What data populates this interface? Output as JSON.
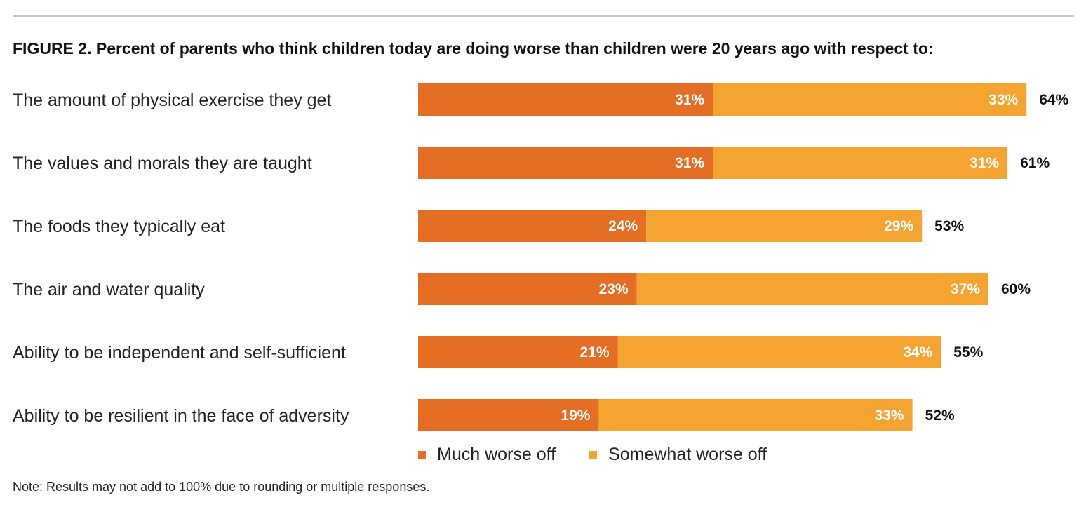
{
  "title": "FIGURE 2. Percent of parents who think children today are doing worse than children were 20 years ago with respect to:",
  "note": "Note: Results may not add to 100% due to rounding or multiple responses.",
  "colors": {
    "much_worse": "#E46E24",
    "somewhat_worse": "#F5A431"
  },
  "chart_data": {
    "type": "bar",
    "orientation": "horizontal",
    "stacked": true,
    "categories": [
      "The amount of physical exercise they get",
      "The values and morals they are taught",
      "The foods they typically eat",
      "The air and water quality",
      "Ability to be independent and self-sufficient",
      "Ability to be resilient in the face of adversity"
    ],
    "series": [
      {
        "name": "Much worse off",
        "values": [
          31,
          31,
          24,
          23,
          21,
          19
        ]
      },
      {
        "name": "Somewhat worse off",
        "values": [
          33,
          31,
          29,
          37,
          34,
          33
        ]
      }
    ],
    "totals": [
      64,
      61,
      53,
      60,
      55,
      52
    ],
    "value_suffix": "%",
    "legend_position": "bottom",
    "grid": false
  }
}
